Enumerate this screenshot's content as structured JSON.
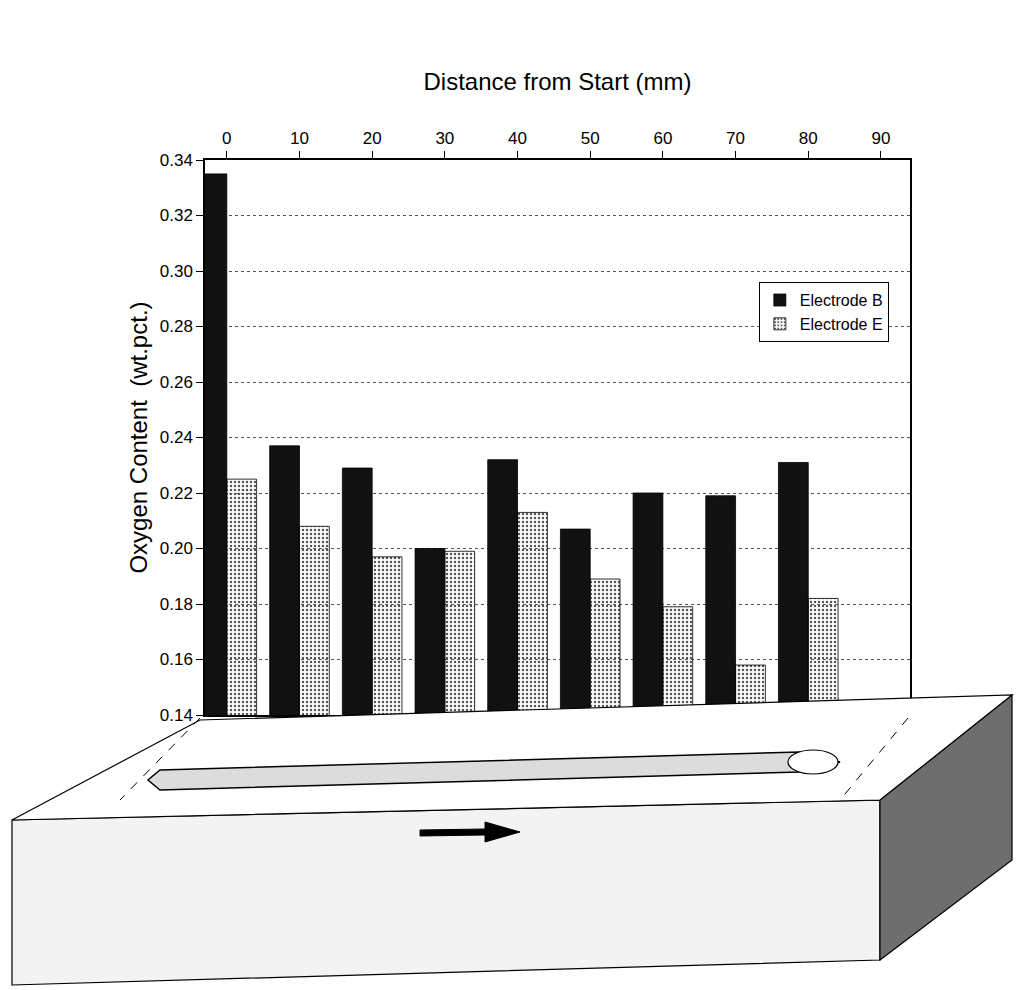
{
  "chart_data": {
    "type": "bar",
    "x_label": "Distance from Start (mm)",
    "y_label": "Oxygen Content  (wt.pct.)",
    "x": [
      0,
      10,
      20,
      30,
      40,
      50,
      60,
      70,
      80
    ],
    "series": [
      {
        "name": "Electrode B",
        "color": "#111111",
        "values": [
          0.335,
          0.237,
          0.229,
          0.2,
          0.232,
          0.207,
          0.22,
          0.219,
          0.231
        ]
      },
      {
        "name": "Electrode E",
        "color": "#9a9a9a",
        "values": [
          0.225,
          0.208,
          0.197,
          0.199,
          0.213,
          0.189,
          0.179,
          0.158,
          0.182
        ]
      }
    ],
    "xlim": [
      -3,
      94
    ],
    "xticks": [
      0,
      10,
      20,
      30,
      40,
      50,
      60,
      70,
      80,
      90
    ],
    "ylim": [
      0.14,
      0.34
    ],
    "yticks": [
      0.14,
      0.16,
      0.18,
      {
        "value": 0.2,
        "label": "0.20"
      },
      0.22,
      0.24,
      0.26,
      0.28,
      {
        "value": 0.3,
        "label": "0.30"
      },
      0.32,
      0.34
    ],
    "grid": true,
    "legend": "upper right"
  }
}
